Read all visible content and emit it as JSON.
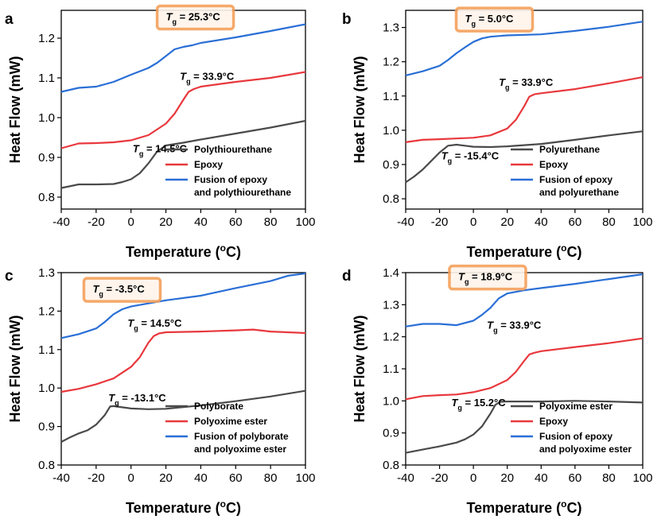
{
  "colors": {
    "gray": "#4a4a4a",
    "red": "#e8383d",
    "blue": "#2a6fd6",
    "highlight": "#f5a05a"
  },
  "chart_data": [
    {
      "panel": "a",
      "type": "line",
      "xlabel": "Temperature (oC)",
      "ylabel": "Heat Flow (mW)",
      "xlim": [
        -40,
        100
      ],
      "ylim": [
        0.77,
        1.27
      ],
      "xticks": [
        -40,
        -20,
        0,
        20,
        40,
        60,
        80,
        100
      ],
      "yticks": [
        0.8,
        0.9,
        1.0,
        1.1,
        1.2
      ],
      "series": [
        {
          "name": "Polythiourethane",
          "color": "gray",
          "x": [
            -40,
            -30,
            -20,
            -10,
            -5,
            0,
            5,
            10,
            15,
            20,
            30,
            40,
            60,
            80,
            100
          ],
          "y": [
            0.823,
            0.832,
            0.832,
            0.833,
            0.838,
            0.845,
            0.86,
            0.885,
            0.915,
            0.93,
            0.937,
            0.945,
            0.96,
            0.975,
            0.992
          ]
        },
        {
          "name": "Epoxy",
          "color": "red",
          "x": [
            -40,
            -30,
            -20,
            -10,
            0,
            10,
            20,
            25,
            30,
            33,
            36,
            40,
            60,
            80,
            100
          ],
          "y": [
            0.923,
            0.935,
            0.936,
            0.938,
            0.943,
            0.956,
            0.985,
            1.01,
            1.045,
            1.065,
            1.072,
            1.078,
            1.09,
            1.1,
            1.115
          ]
        },
        {
          "name": "Fusion of epoxy  and polythiourethane",
          "color": "blue",
          "x": [
            -40,
            -30,
            -20,
            -10,
            0,
            10,
            15,
            20,
            25,
            30,
            35,
            40,
            60,
            80,
            100
          ],
          "y": [
            1.065,
            1.075,
            1.078,
            1.09,
            1.108,
            1.125,
            1.138,
            1.155,
            1.172,
            1.178,
            1.182,
            1.188,
            1.202,
            1.218,
            1.235
          ]
        }
      ],
      "annotations": [
        {
          "tg_value": "25.3",
          "x": 20,
          "y": 1.245,
          "boxed": true
        },
        {
          "tg_value": "33.9",
          "x": 28,
          "y": 1.095,
          "boxed": false
        },
        {
          "tg_value": "14.5",
          "x": 1,
          "y": 0.913,
          "boxed": false
        }
      ]
    },
    {
      "panel": "b",
      "type": "line",
      "xlabel": "Temperature (oC)",
      "ylabel": "Heat Flow (mW)",
      "xlim": [
        -40,
        100
      ],
      "ylim": [
        0.77,
        1.35
      ],
      "xticks": [
        -40,
        -20,
        0,
        20,
        40,
        60,
        80,
        100
      ],
      "yticks": [
        0.8,
        0.9,
        1.0,
        1.1,
        1.2,
        1.3
      ],
      "series": [
        {
          "name": "Polyurethane",
          "color": "gray",
          "x": [
            -40,
            -35,
            -30,
            -25,
            -20,
            -15,
            -10,
            -5,
            0,
            10,
            20,
            40,
            60,
            80,
            100
          ],
          "y": [
            0.848,
            0.865,
            0.885,
            0.91,
            0.935,
            0.955,
            0.958,
            0.955,
            0.952,
            0.951,
            0.953,
            0.96,
            0.972,
            0.985,
            0.997
          ]
        },
        {
          "name": "Epoxy",
          "color": "red",
          "x": [
            -40,
            -30,
            -20,
            -10,
            0,
            10,
            20,
            25,
            30,
            33,
            36,
            40,
            60,
            80,
            100
          ],
          "y": [
            0.965,
            0.972,
            0.974,
            0.976,
            0.978,
            0.985,
            1.005,
            1.03,
            1.07,
            1.098,
            1.105,
            1.108,
            1.12,
            1.137,
            1.155
          ]
        },
        {
          "name": "Fusion of epoxy and polyurethane",
          "color": "blue",
          "x": [
            -40,
            -30,
            -20,
            -15,
            -10,
            -5,
            0,
            5,
            10,
            15,
            20,
            40,
            60,
            80,
            100
          ],
          "y": [
            1.16,
            1.172,
            1.188,
            1.205,
            1.225,
            1.242,
            1.258,
            1.268,
            1.273,
            1.275,
            1.277,
            1.28,
            1.29,
            1.302,
            1.317
          ]
        }
      ],
      "annotations": [
        {
          "tg_value": "5.0",
          "x": -5,
          "y": 1.315,
          "boxed": true
        },
        {
          "tg_value": "33.9",
          "x": 15,
          "y": 1.13,
          "boxed": false
        },
        {
          "tg_value": "-15.4",
          "x": -19,
          "y": 0.915,
          "boxed": false
        }
      ]
    },
    {
      "panel": "c",
      "type": "line",
      "xlabel": "Temperature (oC)",
      "ylabel": "Heat Flow (mW)",
      "xlim": [
        -40,
        100
      ],
      "ylim": [
        0.8,
        1.3
      ],
      "xticks": [
        -40,
        -20,
        0,
        20,
        40,
        60,
        80,
        100
      ],
      "yticks": [
        0.8,
        0.9,
        1.0,
        1.1,
        1.2,
        1.3
      ],
      "series": [
        {
          "name": "Polyborate",
          "color": "gray",
          "x": [
            -40,
            -35,
            -30,
            -25,
            -20,
            -15,
            -12,
            -10,
            -5,
            0,
            10,
            20,
            40,
            60,
            80,
            100
          ],
          "y": [
            0.86,
            0.872,
            0.882,
            0.89,
            0.905,
            0.93,
            0.952,
            0.953,
            0.95,
            0.947,
            0.945,
            0.946,
            0.955,
            0.966,
            0.978,
            0.993
          ]
        },
        {
          "name": "Polyoxime ester",
          "color": "red",
          "x": [
            -40,
            -30,
            -20,
            -10,
            0,
            5,
            10,
            13,
            16,
            20,
            40,
            60,
            70,
            80,
            100
          ],
          "y": [
            0.99,
            0.998,
            1.01,
            1.025,
            1.055,
            1.08,
            1.118,
            1.135,
            1.142,
            1.145,
            1.147,
            1.15,
            1.152,
            1.147,
            1.143
          ]
        },
        {
          "name": "Fusion of polyborate and polyoxime ester",
          "color": "blue",
          "x": [
            -40,
            -30,
            -20,
            -15,
            -10,
            -5,
            0,
            10,
            20,
            40,
            60,
            80,
            90,
            100
          ],
          "y": [
            1.13,
            1.14,
            1.155,
            1.172,
            1.192,
            1.205,
            1.212,
            1.22,
            1.228,
            1.24,
            1.26,
            1.278,
            1.292,
            1.298
          ]
        }
      ],
      "annotations": [
        {
          "tg_value": "-3.5",
          "x": -22,
          "y": 1.248,
          "boxed": true
        },
        {
          "tg_value": "14.5",
          "x": -2,
          "y": 1.16,
          "boxed": false
        },
        {
          "tg_value": "-13.1",
          "x": -13,
          "y": 0.965,
          "boxed": false
        }
      ]
    },
    {
      "panel": "d",
      "type": "line",
      "xlabel": "Temperature (oC)",
      "ylabel": "Heat Flow (mW)",
      "xlim": [
        -40,
        100
      ],
      "ylim": [
        0.8,
        1.4
      ],
      "xticks": [
        -40,
        -20,
        0,
        20,
        40,
        60,
        80,
        100
      ],
      "yticks": [
        0.8,
        0.9,
        1.0,
        1.1,
        1.2,
        1.3,
        1.4
      ],
      "series": [
        {
          "name": "Polyoxime ester",
          "color": "gray",
          "x": [
            -40,
            -30,
            -20,
            -10,
            -5,
            0,
            5,
            10,
            13,
            16,
            20,
            40,
            60,
            80,
            100
          ],
          "y": [
            0.838,
            0.848,
            0.858,
            0.87,
            0.88,
            0.895,
            0.92,
            0.96,
            0.988,
            0.997,
            0.998,
            0.998,
            1.0,
            0.998,
            0.995
          ]
        },
        {
          "name": "Epoxy",
          "color": "red",
          "x": [
            -40,
            -30,
            -20,
            -10,
            0,
            10,
            20,
            25,
            30,
            33,
            36,
            40,
            60,
            80,
            100
          ],
          "y": [
            1.005,
            1.015,
            1.018,
            1.02,
            1.027,
            1.04,
            1.065,
            1.09,
            1.125,
            1.145,
            1.15,
            1.155,
            1.168,
            1.18,
            1.195
          ]
        },
        {
          "name": "Fusion of epoxy and polyoxime ester",
          "color": "blue",
          "x": [
            -40,
            -30,
            -20,
            -10,
            0,
            5,
            10,
            15,
            20,
            25,
            30,
            40,
            60,
            80,
            100
          ],
          "y": [
            1.232,
            1.24,
            1.24,
            1.236,
            1.25,
            1.268,
            1.29,
            1.32,
            1.335,
            1.34,
            1.345,
            1.352,
            1.365,
            1.38,
            1.395
          ]
        }
      ],
      "annotations": [
        {
          "tg_value": "18.9",
          "x": -9,
          "y": 1.376,
          "boxed": true
        },
        {
          "tg_value": "33.9",
          "x": 8,
          "y": 1.225,
          "boxed": false
        },
        {
          "tg_value": "15.2",
          "x": -13,
          "y": 0.984,
          "boxed": false
        }
      ]
    }
  ]
}
